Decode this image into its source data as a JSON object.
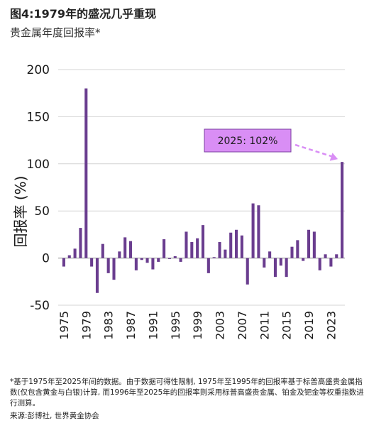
{
  "title": "图4:1979年的盛况几乎重现",
  "subtitle": "贵金属年度回报率*",
  "footnote": "*基于1975年至2025年间的数据。由于数据可得性限制, 1975年至1995年的回报率基于标普高盛贵金属指数(仅包含黄金与白银)计算, 而1996年至2025年的回报率则采用标普高盛贵金属、铂金及钯金等权重指数进行测算。",
  "source": "来源:彭博社, 世界黄金协会",
  "chart_data": {
    "type": "bar",
    "ylabel": "回报率 (%)",
    "ylim": [
      -50,
      200
    ],
    "yticks": [
      -50,
      0,
      50,
      100,
      150,
      200
    ],
    "xticks": [
      "1975",
      "1979",
      "1983",
      "1987",
      "1991",
      "1995",
      "1999",
      "2003",
      "2007",
      "2011",
      "2015",
      "2019",
      "2023"
    ],
    "grid": true,
    "bar_color": "#6a3d8f",
    "annotation": {
      "text": "2025: 102%",
      "box_color": "#d98ef5",
      "arrow_color": "#d98ef5",
      "target_year": 2025
    },
    "x": [
      1975,
      1976,
      1977,
      1978,
      1979,
      1980,
      1981,
      1982,
      1983,
      1984,
      1985,
      1986,
      1987,
      1988,
      1989,
      1990,
      1991,
      1992,
      1993,
      1994,
      1995,
      1996,
      1997,
      1998,
      1999,
      2000,
      2001,
      2002,
      2003,
      2004,
      2005,
      2006,
      2007,
      2008,
      2009,
      2010,
      2011,
      2012,
      2013,
      2014,
      2015,
      2016,
      2017,
      2018,
      2019,
      2020,
      2021,
      2022,
      2023,
      2024,
      2025
    ],
    "values": [
      -9,
      3,
      10,
      32,
      180,
      -9,
      -37,
      15,
      -16,
      -23,
      7,
      22,
      18,
      -13,
      -2,
      -5,
      -12,
      -4,
      20,
      -1,
      2,
      -4,
      28,
      17,
      21,
      35,
      -16,
      1,
      17,
      9,
      27,
      30,
      24,
      -28,
      58,
      56,
      -10,
      7,
      -20,
      -8,
      -20,
      12,
      19,
      -3,
      30,
      28,
      -13,
      4,
      -9,
      4,
      102
    ]
  }
}
